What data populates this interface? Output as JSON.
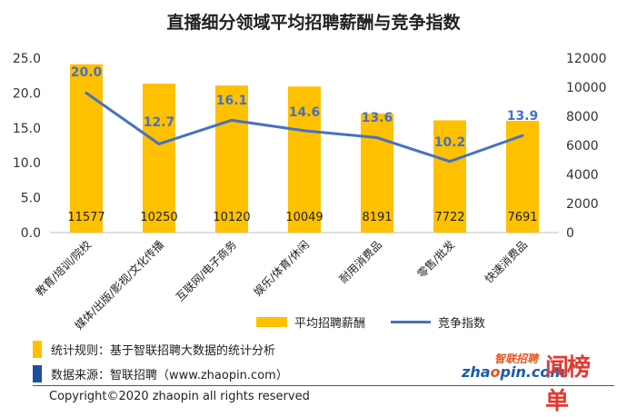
{
  "title": "直播细分领域平均招聘薪酬与竞争指数",
  "chart_data": {
    "type": "bar",
    "categories": [
      "教育/培训/院校",
      "媒体/出版/影视/文化传播",
      "互联网/电子商务",
      "娱乐/体育/休闲",
      "耐用消费品",
      "零售/批发",
      "快速消费品"
    ],
    "series": [
      {
        "name": "平均招聘薪酬",
        "type": "bar",
        "axis": "right",
        "color": "#FFC000",
        "values": [
          11577,
          10250,
          10120,
          10049,
          8191,
          7722,
          7691
        ],
        "labels": [
          "11577",
          "10250",
          "10120",
          "10049",
          "8191",
          "7722",
          "7691"
        ]
      },
      {
        "name": "竞争指数",
        "type": "line",
        "axis": "left",
        "color": "#4472C4",
        "values": [
          20.0,
          12.7,
          16.1,
          14.6,
          13.6,
          10.2,
          13.9
        ],
        "labels": [
          "20.0",
          "12.7",
          "16.1",
          "14.6",
          "13.6",
          "10.2",
          "13.9"
        ]
      }
    ],
    "y_left": {
      "min": 0,
      "max": 25,
      "ticks": [
        "0.0",
        "5.0",
        "10.0",
        "15.0",
        "20.0",
        "25.0"
      ]
    },
    "y_right": {
      "min": 0,
      "max": 12000,
      "ticks": [
        "0",
        "2000",
        "4000",
        "6000",
        "8000",
        "10000",
        "12000"
      ]
    },
    "grid": false,
    "legend_position": "bottom"
  },
  "legend": {
    "bar_label": "平均招聘薪酬",
    "line_label": "竞争指数"
  },
  "notes": {
    "rule": "统计规则：基于智联招聘大数据的统计分析",
    "rule_color": "#FFC000",
    "source": "数据来源：智联招聘（www.zhaopin.com）",
    "source_color": "#1F4E9A"
  },
  "copyright": "Copyright©2020 zhaopin all rights reserved",
  "logos": {
    "zhaopin_cn": "智联招聘",
    "zhaopin_en_prefix": "zha",
    "zhaopin_en_o": "o",
    "zhaopin_en_suffix": "pin.com",
    "ranking": "闻榜单"
  }
}
